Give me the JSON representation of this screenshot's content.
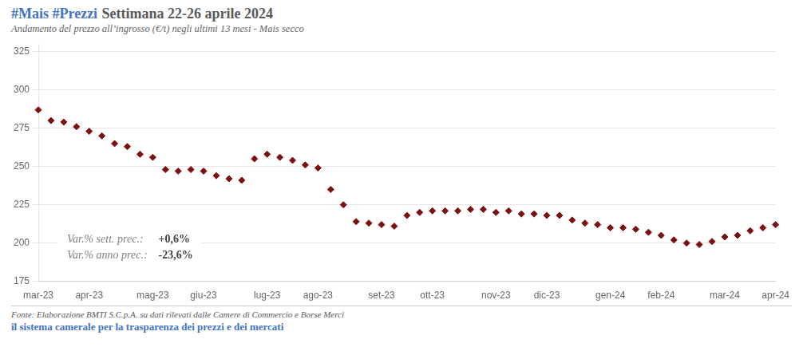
{
  "chart_data": {
    "type": "scatter",
    "title": [
      {
        "text": "#Mais #Prezzi",
        "color": "#4472C4"
      },
      {
        "text": "Settimana 22-26 aprile 2024",
        "color": "#595959"
      }
    ],
    "subtitle": "Andamento del prezzo all’ingrosso (€/t) negli ultimi 13 mesi - Mais secco",
    "categories": [
      "mar-23",
      null,
      null,
      null,
      "apr-23",
      null,
      null,
      null,
      null,
      "mag-23",
      null,
      null,
      null,
      "giu-23",
      null,
      null,
      null,
      null,
      "lug-23",
      null,
      null,
      null,
      "ago-23",
      null,
      null,
      null,
      null,
      "set-23",
      null,
      null,
      null,
      "ott-23",
      null,
      null,
      null,
      null,
      "nov-23",
      null,
      null,
      null,
      "dic-23",
      null,
      null,
      null,
      null,
      "gen-24",
      null,
      null,
      null,
      "feb-24",
      null,
      null,
      null,
      null,
      "mar-24",
      null,
      null,
      null,
      "apr-24"
    ],
    "values": [
      287,
      280,
      279,
      276,
      273,
      270,
      265,
      263,
      258,
      256,
      248,
      247,
      248,
      247,
      244,
      242,
      241,
      255,
      258,
      256,
      254,
      251,
      249,
      235,
      225,
      214,
      213,
      212,
      211,
      218,
      220,
      221,
      221,
      221,
      222,
      222,
      220,
      221,
      219,
      219,
      218,
      218,
      215,
      213,
      212,
      210,
      210,
      209,
      207,
      205,
      202,
      200,
      199,
      201,
      204,
      205,
      208,
      210,
      212
    ],
    "color": "#7B1010",
    "marker": "diamond",
    "ylim": [
      175,
      330
    ],
    "yticks": [
      175,
      200,
      225,
      250,
      275,
      300,
      325
    ],
    "grid": true,
    "annotations": [
      {
        "text": "Var.% sett. prec.:",
        "value": "+0,6%"
      },
      {
        "text": "Var.% anno prec.:",
        "value": "-23,6%"
      }
    ],
    "footer": [
      {
        "text": "Fonte: Elaborazione BMTI S.C.p.A. su dati rilevati dalle Camere di Commercio e Borse Merci",
        "color": "#595959"
      },
      {
        "text": "il sistema camerale per la trasparenza dei prezzi e dei mercati",
        "color": "#4472C4"
      }
    ]
  }
}
